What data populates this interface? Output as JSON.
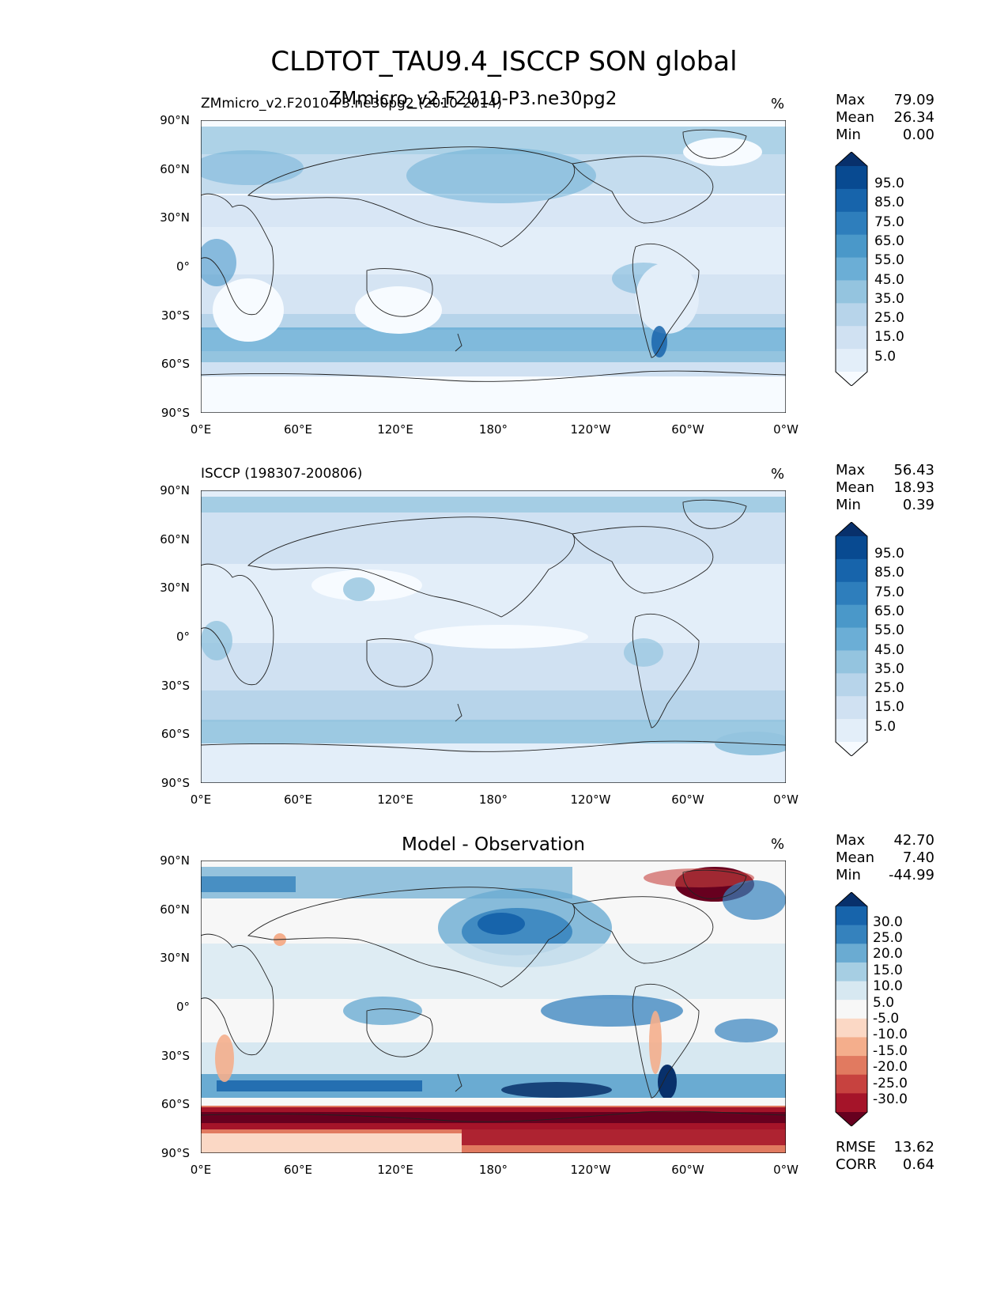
{
  "title": "CLDTOT_TAU9.4_ISCCP SON global",
  "y_ticks": [
    "90°N",
    "60°N",
    "30°N",
    "0°",
    "30°S",
    "60°S",
    "90°S"
  ],
  "x_ticks": [
    "0°E",
    "60°E",
    "120°E",
    "180°",
    "120°W",
    "60°W",
    "0°W"
  ],
  "panels": [
    {
      "heading": "ZMmicro_v2.F2010-P3.ne30pg2",
      "subtitle": "ZMmicro_v2.F2010-P3.ne30pg2 (2010-2014)",
      "unit": "%",
      "stats": {
        "max_label": "Max",
        "max": "79.09",
        "mean_label": "Mean",
        "mean": "26.34",
        "min_label": "Min",
        "min": "0.00"
      },
      "colorbar_ticks": [
        "95.0",
        "85.0",
        "75.0",
        "65.0",
        "55.0",
        "45.0",
        "35.0",
        "25.0",
        "15.0",
        "5.0"
      ],
      "colors": [
        "#f7fbff",
        "#e3eef9",
        "#d0e1f2",
        "#b7d4ea",
        "#94c4df",
        "#6baed6",
        "#4a98c9",
        "#2e7ebc",
        "#1764ab",
        "#084a91",
        "#08306b"
      ]
    },
    {
      "heading": "",
      "subtitle": "ISCCP (198307-200806)",
      "unit": "%",
      "stats": {
        "max_label": "Max",
        "max": "56.43",
        "mean_label": "Mean",
        "mean": "18.93",
        "min_label": "Min",
        "min": "0.39"
      },
      "colorbar_ticks": [
        "95.0",
        "85.0",
        "75.0",
        "65.0",
        "55.0",
        "45.0",
        "35.0",
        "25.0",
        "15.0",
        "5.0"
      ],
      "colors": [
        "#f7fbff",
        "#e3eef9",
        "#d0e1f2",
        "#b7d4ea",
        "#94c4df",
        "#6baed6",
        "#4a98c9",
        "#2e7ebc",
        "#1764ab",
        "#084a91",
        "#08306b"
      ]
    },
    {
      "heading": "Model - Observation",
      "subtitle": "",
      "unit": "%",
      "stats": {
        "max_label": "Max",
        "max": "42.70",
        "mean_label": "Mean",
        "mean": "7.40",
        "min_label": "Min",
        "min": "-44.99"
      },
      "colorbar_ticks": [
        "30.0",
        "25.0",
        "20.0",
        "15.0",
        "10.0",
        "5.0",
        "-5.0",
        "-10.0",
        "-15.0",
        "-20.0",
        "-25.0",
        "-30.0"
      ],
      "colors": [
        "#67001f",
        "#a51429",
        "#c7423f",
        "#e17a60",
        "#f4ae8c",
        "#fbd8c5",
        "#f7f7f7",
        "#d7e8f1",
        "#a6cee3",
        "#6aabd2",
        "#3582bd",
        "#1764ab",
        "#08306b"
      ],
      "metrics": {
        "rmse_label": "RMSE",
        "rmse": "13.62",
        "corr_label": "CORR",
        "corr": "0.64"
      }
    }
  ]
}
